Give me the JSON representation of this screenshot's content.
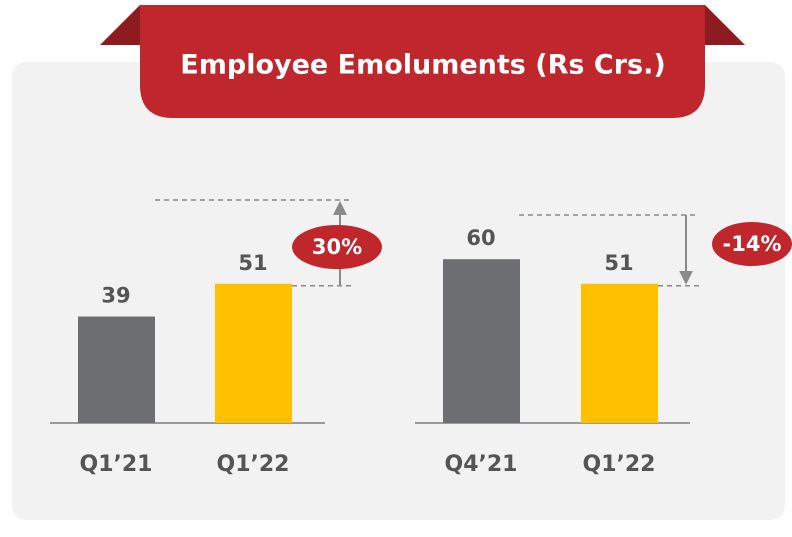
{
  "header": {
    "title": "Employee Emoluments (Rs Crs.)"
  },
  "chart_data": [
    {
      "type": "bar",
      "categories": [
        "Q1’21",
        "Q1’22"
      ],
      "values": [
        39,
        51
      ],
      "colors": [
        "#6d6e71",
        "#ffc000"
      ],
      "annotation": {
        "value": 30,
        "label": "30%"
      }
    },
    {
      "type": "bar",
      "categories": [
        "Q4’21",
        "Q1’22"
      ],
      "values": [
        60,
        51
      ],
      "colors": [
        "#6d6e71",
        "#ffc000"
      ],
      "annotation": {
        "value": -14,
        "label": "-14%"
      }
    }
  ]
}
